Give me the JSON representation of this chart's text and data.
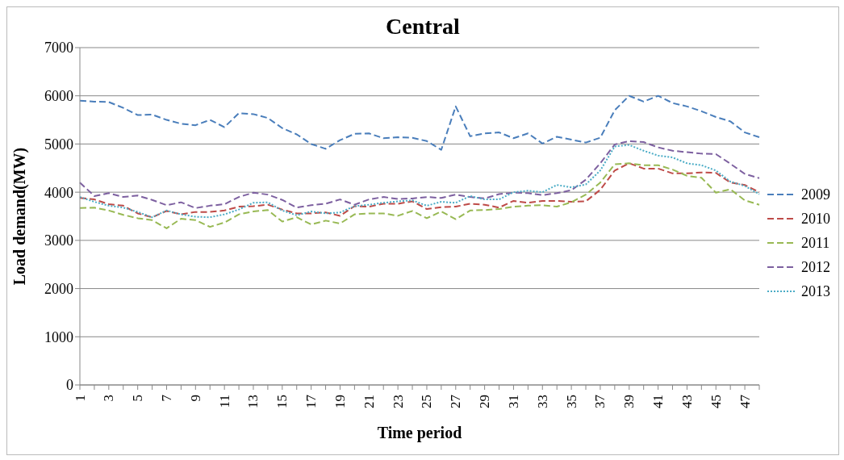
{
  "chart_data": {
    "type": "line",
    "title": "Central",
    "xlabel": "Time period",
    "ylabel": "Load demand(MW)",
    "categories": [
      "1",
      null,
      "3",
      null,
      "5",
      null,
      "7",
      null,
      "9",
      null,
      "11",
      null,
      "13",
      null,
      "15",
      null,
      "17",
      null,
      "19",
      null,
      "21",
      null,
      "23",
      null,
      "25",
      null,
      "27",
      null,
      "29",
      null,
      "31",
      null,
      "33",
      null,
      "35",
      null,
      "37",
      null,
      "39",
      null,
      "41",
      null,
      "43",
      null,
      "45",
      null,
      "47",
      null
    ],
    "ylim": [
      0,
      7000
    ],
    "yticks": [
      0,
      1000,
      2000,
      3000,
      4000,
      5000,
      6000,
      7000
    ],
    "grid": "y",
    "legend": "right",
    "marker": "none",
    "series": [
      {
        "name": "2009",
        "color": "#4a7ebb",
        "line_style": "dashed",
        "values": [
          5900,
          5880,
          5870,
          5750,
          5600,
          5610,
          5500,
          5420,
          5390,
          5500,
          5350,
          5640,
          5620,
          5540,
          5330,
          5200,
          5000,
          4900,
          5080,
          5210,
          5220,
          5120,
          5140,
          5130,
          5060,
          4880,
          5780,
          5160,
          5220,
          5240,
          5120,
          5220,
          5010,
          5150,
          5090,
          5030,
          5130,
          5700,
          6000,
          5880,
          6000,
          5850,
          5780,
          5680,
          5560,
          5470,
          5240,
          5140
        ]
      },
      {
        "name": "2010",
        "color": "#be4b48",
        "line_style": "dashed",
        "values": [
          3880,
          3850,
          3750,
          3720,
          3560,
          3480,
          3610,
          3540,
          3590,
          3590,
          3620,
          3700,
          3710,
          3740,
          3640,
          3560,
          3560,
          3580,
          3510,
          3710,
          3700,
          3760,
          3760,
          3810,
          3650,
          3690,
          3700,
          3760,
          3740,
          3680,
          3820,
          3780,
          3820,
          3820,
          3800,
          3810,
          4050,
          4450,
          4600,
          4490,
          4490,
          4390,
          4390,
          4410,
          4400,
          4200,
          4150,
          4000
        ]
      },
      {
        "name": "2011",
        "color": "#98b954",
        "line_style": "dashed",
        "values": [
          3670,
          3680,
          3620,
          3530,
          3460,
          3420,
          3250,
          3450,
          3420,
          3280,
          3370,
          3540,
          3600,
          3630,
          3390,
          3480,
          3330,
          3410,
          3350,
          3540,
          3560,
          3560,
          3510,
          3610,
          3460,
          3600,
          3440,
          3620,
          3630,
          3650,
          3700,
          3720,
          3730,
          3700,
          3790,
          3950,
          4200,
          4580,
          4600,
          4560,
          4560,
          4470,
          4340,
          4300,
          3990,
          4060,
          3830,
          3740
        ]
      },
      {
        "name": "2012",
        "color": "#7d60a0",
        "line_style": "dashed",
        "values": [
          4200,
          3920,
          3980,
          3900,
          3930,
          3840,
          3730,
          3790,
          3670,
          3720,
          3750,
          3900,
          3990,
          3950,
          3840,
          3680,
          3730,
          3760,
          3850,
          3740,
          3850,
          3900,
          3860,
          3870,
          3900,
          3880,
          3950,
          3900,
          3870,
          3960,
          3990,
          3980,
          3940,
          3980,
          4040,
          4260,
          4600,
          4990,
          5060,
          5040,
          4930,
          4860,
          4830,
          4800,
          4790,
          4590,
          4380,
          4290
        ]
      },
      {
        "name": "2013",
        "color": "#4bacc6",
        "line_style": "dotted",
        "values": [
          3900,
          3800,
          3720,
          3680,
          3590,
          3480,
          3620,
          3540,
          3490,
          3480,
          3540,
          3640,
          3780,
          3790,
          3620,
          3520,
          3600,
          3560,
          3580,
          3710,
          3740,
          3780,
          3810,
          3830,
          3720,
          3800,
          3780,
          3920,
          3850,
          3850,
          4000,
          4030,
          4000,
          4150,
          4100,
          4160,
          4450,
          4950,
          4980,
          4860,
          4760,
          4720,
          4600,
          4560,
          4450,
          4220,
          4130,
          3960
        ]
      }
    ]
  }
}
